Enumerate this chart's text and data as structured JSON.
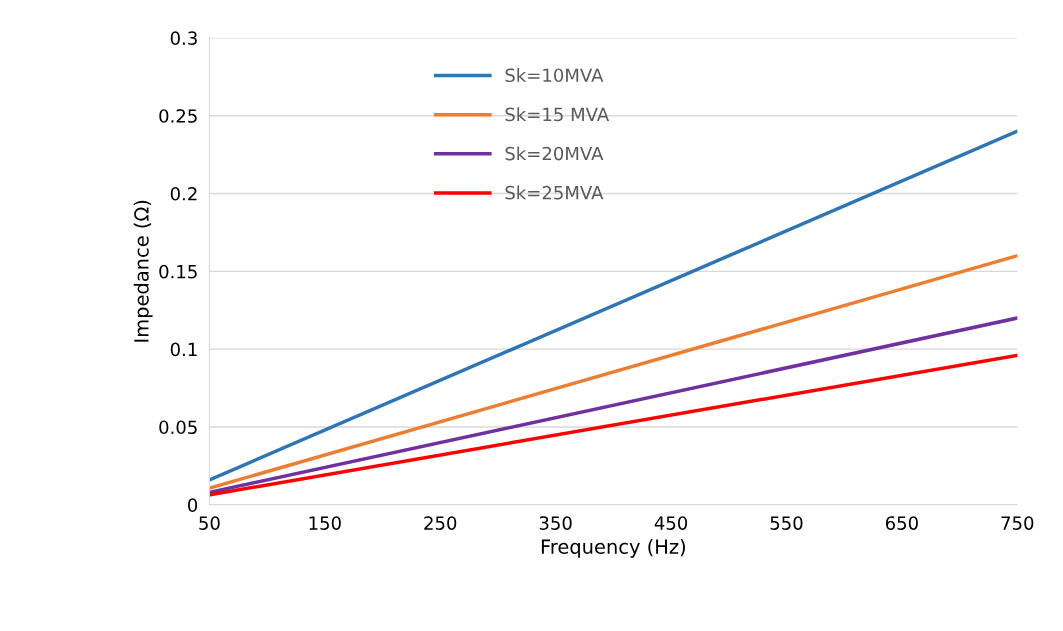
{
  "chart_data": {
    "type": "line",
    "xlabel": "Frequency (Hz)",
    "ylabel": "Impedance (Ω)",
    "x": [
      50,
      750
    ],
    "series": [
      {
        "name": "Sk=10MVA",
        "color": "#2e75b6",
        "values": [
          0.016,
          0.24
        ]
      },
      {
        "name": "Sk=15 MVA",
        "color": "#ed7d31",
        "values": [
          0.0107,
          0.16
        ]
      },
      {
        "name": "Sk=20MVA",
        "color": "#7030a0",
        "values": [
          0.008,
          0.12
        ]
      },
      {
        "name": "Sk=25MVA",
        "color": "#ff0000",
        "values": [
          0.0064,
          0.096
        ]
      }
    ],
    "xlim": [
      50,
      750
    ],
    "xticks": [
      50,
      150,
      250,
      350,
      450,
      550,
      650,
      750
    ],
    "ylim": [
      0,
      0.3
    ],
    "yticks": [
      0,
      0.05,
      0.1,
      0.15,
      0.2,
      0.25,
      0.3
    ],
    "grid": "y",
    "legend": "top left",
    "marker": "none",
    "line_style": "solid"
  }
}
